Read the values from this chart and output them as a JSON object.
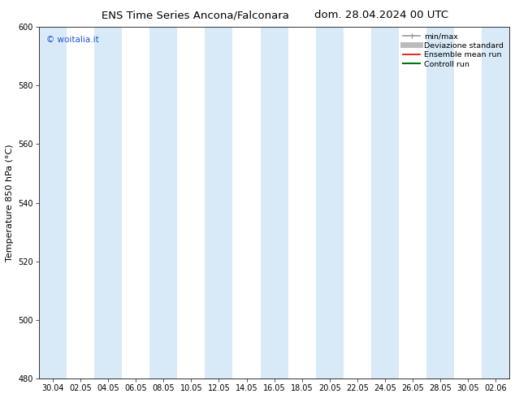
{
  "title_left": "ENS Time Series Ancona/Falconara",
  "title_right": "dom. 28.04.2024 00 UTC",
  "ylabel": "Temperature 850 hPa (°C)",
  "ylim": [
    480,
    600
  ],
  "yticks": [
    480,
    500,
    520,
    540,
    560,
    580,
    600
  ],
  "xtick_labels": [
    "30.04",
    "02.05",
    "04.05",
    "06.05",
    "08.05",
    "10.05",
    "12.05",
    "14.05",
    "16.05",
    "18.05",
    "20.05",
    "22.05",
    "24.05",
    "26.05",
    "28.05",
    "30.05",
    "02.06"
  ],
  "background_color": "#ffffff",
  "plot_bg_color": "#ffffff",
  "shaded_band_color": "#d8eaf7",
  "watermark": "© woitalia.it",
  "watermark_color": "#2255cc",
  "legend_items": [
    {
      "label": "min/max",
      "color": "#999999",
      "lw": 1.2,
      "ls": "-"
    },
    {
      "label": "Deviazione standard",
      "color": "#bbbbbb",
      "lw": 5,
      "ls": "-"
    },
    {
      "label": "Ensemble mean run",
      "color": "#dd0000",
      "lw": 1.2,
      "ls": "-"
    },
    {
      "label": "Controll run",
      "color": "#007700",
      "lw": 1.5,
      "ls": "-"
    }
  ],
  "title_fontsize": 9.5,
  "tick_fontsize": 7,
  "ylabel_fontsize": 8,
  "watermark_fontsize": 7.5,
  "legend_fontsize": 6.8
}
